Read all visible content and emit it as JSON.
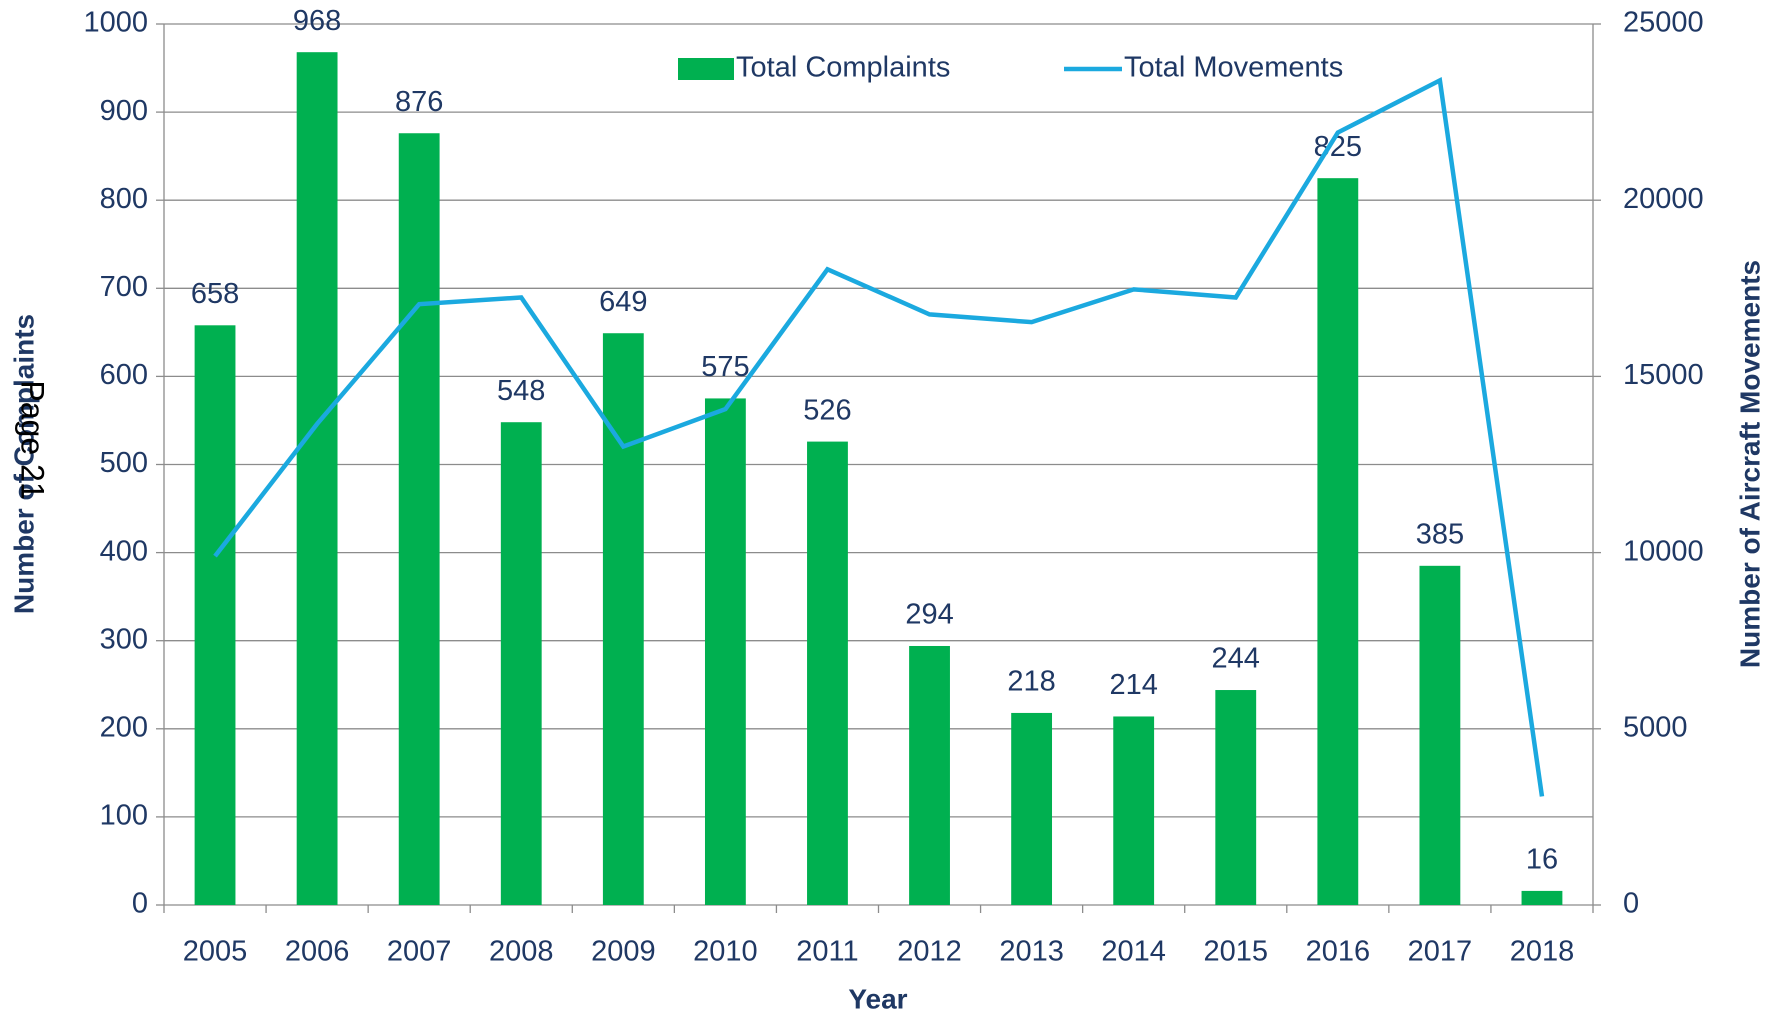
{
  "chart_data": {
    "type": "bar",
    "x_label": "Year",
    "y_label": "Number of Complaints",
    "y2_label": "Number of Aircraft Movements",
    "annotation": "Page 21",
    "categories": [
      "2005",
      "2006",
      "2007",
      "2008",
      "2009",
      "2010",
      "2011",
      "2012",
      "2013",
      "2014",
      "2015",
      "2016",
      "2017",
      "2018"
    ],
    "series": [
      {
        "name": "Total Complaints",
        "type": "bar",
        "color": "#00b050",
        "axis": "y",
        "values": [
          658,
          968,
          876,
          548,
          649,
          575,
          526,
          294,
          218,
          214,
          244,
          825,
          385,
          16
        ]
      },
      {
        "name": "Total Movements",
        "type": "line",
        "color": "#1ba9df",
        "axis": "y2",
        "values": [
          9900,
          13650,
          17050,
          17240,
          13010,
          14070,
          18040,
          16760,
          16540,
          17470,
          17240,
          21920,
          23400,
          3080
        ]
      }
    ],
    "ylim": [
      0,
      1000
    ],
    "yticks": [
      0,
      100,
      200,
      300,
      400,
      500,
      600,
      700,
      800,
      900,
      1000
    ],
    "y2lim": [
      0,
      25000
    ],
    "y2ticks": [
      0,
      5000,
      10000,
      15000,
      20000,
      25000
    ],
    "grid": true,
    "legend": "top"
  }
}
